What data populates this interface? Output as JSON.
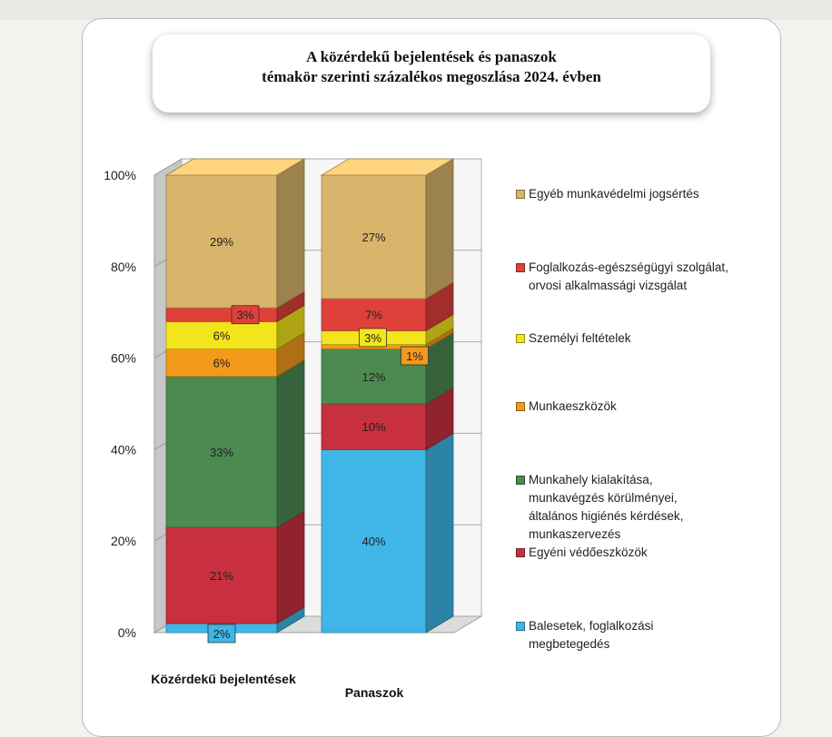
{
  "chart_data": {
    "type": "stacked-bar-3d",
    "title_lines": [
      "A közérdekű bejelentések és panaszok",
      "témakör szerinti százalékos megoszlása  2024. évben"
    ],
    "categories": [
      "Közérdekű bejelentések",
      "Panaszok"
    ],
    "y_ticks": [
      "0%",
      "20%",
      "40%",
      "60%",
      "80%",
      "100%"
    ],
    "ylim": [
      0,
      100
    ],
    "legend_position": "right",
    "series": [
      {
        "name": "Balesetek, foglalkozási megbetegedés",
        "color": "#3fb6e6",
        "values": [
          2,
          40
        ],
        "labels": [
          "2%",
          "40%"
        ]
      },
      {
        "name": "Egyéni védőeszközök",
        "color": "#c8303f",
        "values": [
          21,
          10
        ],
        "labels": [
          "21%",
          "10%"
        ]
      },
      {
        "name": "Munkahely kialakítása, munkavégzés körülményei, általános higiénés kérdések, munkaszervezés",
        "color": "#4c8a52",
        "values": [
          33,
          12
        ],
        "labels": [
          "33%",
          "12%"
        ]
      },
      {
        "name": "Munkaeszközök",
        "color": "#f39a1c",
        "values": [
          6,
          1
        ],
        "labels": [
          "6%",
          "1%"
        ]
      },
      {
        "name": "Személyi feltételek",
        "color": "#f3e51c",
        "values": [
          6,
          3
        ],
        "labels": [
          "6%",
          "3%"
        ]
      },
      {
        "name": "Foglalkozás-egészségügyi szolgálat, orvosi alkalmassági vizsgálat",
        "color": "#e0403a",
        "values": [
          3,
          7
        ],
        "labels": [
          "3%",
          "7%"
        ]
      },
      {
        "name": "Egyéb munkavédelmi jogsértés",
        "color": "#d9b46b",
        "values": [
          29,
          27
        ],
        "labels": [
          "29%",
          "27%"
        ]
      }
    ],
    "legend_lines": [
      [
        "Egyéb munkavédelmi jogsértés"
      ],
      [
        "Foglalkozás-egészségügyi szolgálat,",
        "orvosi alkalmassági vizsgálat"
      ],
      [
        "Személyi feltételek"
      ],
      [
        "Munkaeszközök"
      ],
      [
        "Munkahely kialakítása,",
        "munkavégzés körülményei,",
        "általános higiénés kérdések,",
        "munkaszervezés"
      ],
      [
        "Egyéni védőeszközök"
      ],
      [
        "Balesetek, foglalkozási",
        "megbetegedés"
      ]
    ]
  }
}
